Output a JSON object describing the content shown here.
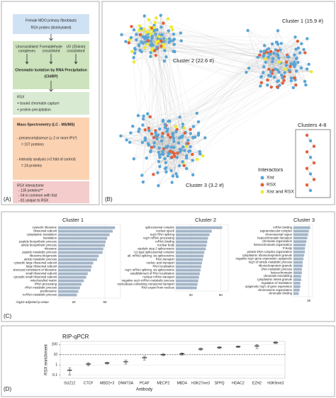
{
  "panel_a": {
    "label": "(A)",
    "boxes": [
      {
        "lines": [
          "Female MDO primary fibroblasts",
          "RSX probes (biotinylated)"
        ]
      },
      {
        "columns": [
          [
            "Uncrosslinked",
            "complexes"
          ],
          [
            "Formaldehyde",
            "crosslinked"
          ],
          [
            "UV (254nm)",
            "crosslinked"
          ]
        ],
        "lines": [
          "Chromatin Isolation by RNA Precipitation",
          "(ChIRP)"
        ]
      },
      {
        "lines": [
          "RSX",
          "+ bound chromatin capture",
          "+ protein precipitation"
        ]
      },
      {
        "lines": [
          "Mass Spectrometry (LC - MS/MS)",
          "- presence/absence (≥ 2 or more IPs*)",
          "= 107 proteins",
          "- intensity analysis (>2 fold of control)",
          "= 24 proteins"
        ]
      },
      {
        "lines": [
          "RSX interactome",
          "- 135 proteins**",
          "- 54 in common with Xist",
          "- 81 unique to RSX"
        ]
      }
    ]
  },
  "panel_b": {
    "label": "(B)",
    "clusters": [
      "Cluster 1 (15.9 #)",
      "Cluster 2 (22.6 #)",
      "Cluster 3 (3.2 #)",
      "Clusters 4-8"
    ],
    "legend": {
      "title": "Interactors",
      "items": [
        {
          "label": "Xist",
          "color": "#5aa5d6"
        },
        {
          "label": "RSX",
          "color": "#e2603a"
        },
        {
          "label": "Xist and RSX",
          "color": "#ecec2c"
        }
      ]
    }
  },
  "panel_c_label": "(C)",
  "panel_d_label": "(D)",
  "chart_data": [
    {
      "type": "bar",
      "orientation": "horizontal",
      "title": "Cluster 1",
      "color": "#a3b5c8",
      "categories": [
        "cytosolic ribosome",
        "ribosomal subunit",
        "cytoplasmic translation",
        "translation",
        "peptide biosynthetic process",
        "amide biosynthetic process",
        "ribosome",
        "peptide metabolic process",
        "ribosome biogenesis",
        "amide metabolic process",
        "cytosolic large ribosomal subunit",
        "large ribosomal subunit",
        "structural constituent of ribosome",
        "small ribosomal subunit",
        "cytosolic small ribosomal subunit",
        "mitochondrial matrix",
        "rRNA processing",
        "rRNA metabolic process",
        "preribosome",
        "ncRNA metabolic process"
      ],
      "values": [
        73,
        70,
        66,
        63,
        61,
        60,
        58,
        57,
        52,
        50,
        45,
        43,
        42,
        38,
        36,
        33,
        30,
        28,
        26,
        24
      ],
      "xlim": [
        0,
        80
      ],
      "xticks": [
        20,
        60
      ],
      "xlabel": "-log10 adjusted p-value"
    },
    {
      "type": "bar",
      "orientation": "horizontal",
      "title": "Cluster 2",
      "color": "#a3b5c8",
      "categories": [
        "spliceosomal complex",
        "nuclear speck",
        "reg'n RNA splicing",
        "reg'n mRNA processing",
        "mRNA binding",
        "nuclear body",
        "catalytic step 2 spliceosome",
        "U2-type spliceosomal complex",
        "alt. mRNA splicing, via spliceosome",
        "RNA transport",
        "nucleic acid transport",
        "RNA localization",
        "reg'n mRNA splicing, via spliceosome",
        "establishment of RNA localization",
        "nuclear mRNA transport",
        "negative reg'n mRNA metabolic process",
        "nucleobase-containing compound transport",
        "RNA export from nucleus"
      ],
      "values": [
        62,
        48,
        45,
        43,
        42,
        41,
        40,
        38,
        37,
        36,
        35,
        34,
        33,
        32,
        31,
        30,
        29,
        28
      ],
      "xlim": [
        0,
        70
      ],
      "xticks": [
        20,
        60
      ]
    },
    {
      "type": "bar",
      "orientation": "horizontal",
      "title": "Cluster 3",
      "color": "#a3b5c8",
      "categories": [
        "mRNA binding",
        "supramolecular complex",
        "chromosomal region",
        "heterochromatin formation",
        "chromatin organization",
        "heterochromatin organization",
        "P-body",
        "protein-DNA complex organization",
        "cytoplasmic ribonucleoprotein granule",
        "negative reg'n gene expression, epigenetic",
        "reg'n of amide metabolic process",
        "ribonucleoprotein granule",
        "DNA metabolic process",
        "heterochromatin",
        "chromatin remodeling",
        "cytoplasmic stress granule",
        "regulation of translation",
        "epigenetic reg'n of gene expression",
        "chromosome organization",
        "chromatin binding"
      ],
      "values": [
        22,
        20,
        19,
        18,
        17,
        16,
        15,
        15,
        14,
        13,
        12,
        12,
        11,
        11,
        10,
        10,
        9,
        9,
        8,
        7
      ],
      "xlim": [
        0,
        25
      ],
      "xticks": [
        20
      ]
    },
    {
      "type": "dot",
      "title": "RIP-qPCR",
      "ylabel": "RSX enrichment",
      "xlabel": "Antibody",
      "color": "#222222",
      "categories": [
        "SUZ12",
        "CTCF",
        "MBD2+3",
        "DNMT3A",
        "PCAF",
        "MECP2",
        "MBD4",
        "H3K27me3",
        "SFPQ",
        "HDAC2",
        "EZH2",
        "H3K9me3"
      ],
      "values": [
        0.3,
        1.2,
        1.5,
        2,
        5,
        10,
        12,
        35,
        50,
        60,
        70,
        150
      ],
      "errors": [
        0.2,
        0.4,
        0.3,
        0.8,
        2,
        2,
        3,
        8,
        10,
        10,
        30,
        30
      ],
      "log_y": true,
      "ylim": [
        0.05,
        200
      ],
      "yticks": [
        0.1,
        1,
        10,
        100
      ],
      "hline": 10,
      "grid": true
    }
  ]
}
